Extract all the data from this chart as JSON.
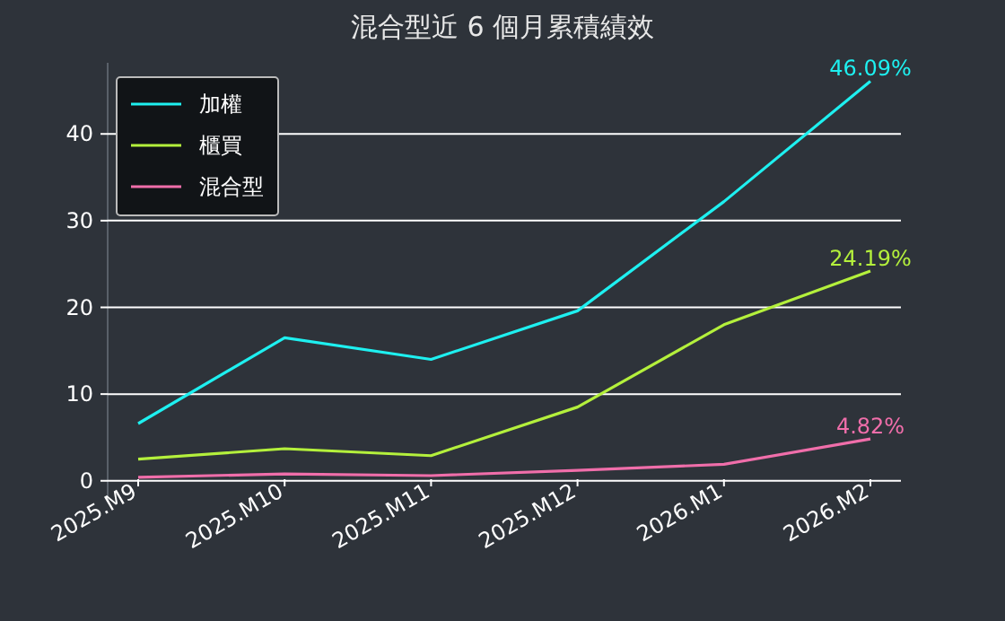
{
  "chart_data": {
    "type": "line",
    "title": "混合型近 6 個月累積績效",
    "categories": [
      "2025.M9",
      "2025.M10",
      "2025.M11",
      "2025.M12",
      "2026.M1",
      "2026.M2"
    ],
    "series": [
      {
        "name": "加權",
        "color": "#1ef0f0",
        "values": [
          6.6,
          16.5,
          14.0,
          19.6,
          32.2,
          46.09
        ],
        "value_labels": [
          null,
          null,
          null,
          null,
          null,
          "46.09%"
        ]
      },
      {
        "name": "櫃買",
        "color": "#b4f03c",
        "values": [
          2.5,
          3.7,
          2.9,
          8.5,
          18.0,
          24.19
        ],
        "value_labels": [
          null,
          null,
          null,
          null,
          null,
          "24.19%"
        ]
      },
      {
        "name": "混合型",
        "color": "#f06eaa",
        "values": [
          0.4,
          0.8,
          0.6,
          1.2,
          1.9,
          4.82
        ],
        "value_labels": [
          null,
          null,
          null,
          null,
          null,
          "4.82%"
        ]
      }
    ],
    "ylim": [
      -2.3,
      48.2
    ],
    "yticks": [
      0,
      10,
      20,
      30,
      40
    ],
    "grid": "y",
    "legend": "top left"
  }
}
